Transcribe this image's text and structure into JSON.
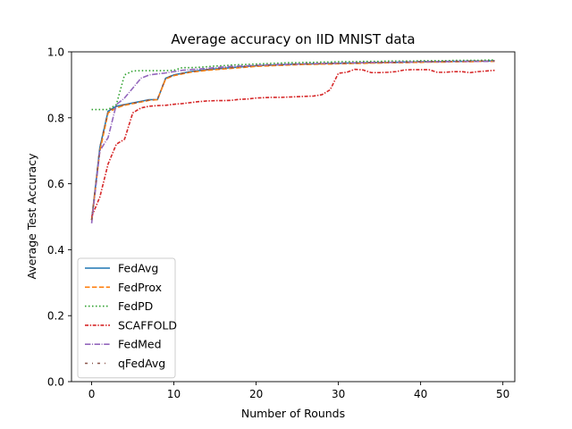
{
  "chart_data": {
    "type": "line",
    "title": "Average accuracy on IID MNIST data",
    "xlabel": "Number of Rounds",
    "ylabel": "Average Test Accuracy",
    "xlim": [
      -2.45,
      51.45
    ],
    "ylim": [
      0.0,
      1.0
    ],
    "xticks": [
      "0",
      "10",
      "20",
      "30",
      "40",
      "50"
    ],
    "yticks": [
      "0.0",
      "0.2",
      "0.4",
      "0.6",
      "0.8",
      "1.0"
    ],
    "grid": false,
    "legend_position": "lower-left",
    "x": [
      0,
      1,
      2,
      3,
      4,
      5,
      6,
      7,
      8,
      9,
      10,
      11,
      12,
      13,
      14,
      15,
      16,
      17,
      18,
      19,
      20,
      21,
      22,
      23,
      24,
      25,
      26,
      27,
      28,
      29,
      30,
      31,
      32,
      33,
      34,
      35,
      36,
      37,
      38,
      39,
      40,
      41,
      42,
      43,
      44,
      45,
      46,
      47,
      48,
      49
    ],
    "series": [
      {
        "name": "FedAvg",
        "color": "#1f77b4",
        "dash": "solid",
        "values": [
          0.49,
          0.71,
          0.82,
          0.835,
          0.84,
          0.845,
          0.85,
          0.855,
          0.855,
          0.92,
          0.93,
          0.935,
          0.94,
          0.943,
          0.946,
          0.948,
          0.95,
          0.952,
          0.954,
          0.956,
          0.958,
          0.959,
          0.96,
          0.961,
          0.962,
          0.963,
          0.963,
          0.964,
          0.964,
          0.965,
          0.965,
          0.966,
          0.966,
          0.967,
          0.967,
          0.968,
          0.968,
          0.968,
          0.969,
          0.969,
          0.97,
          0.97,
          0.97,
          0.971,
          0.971,
          0.971,
          0.972,
          0.972,
          0.972,
          0.973
        ]
      },
      {
        "name": "FedProx",
        "color": "#ff7f0e",
        "dash": "dashed",
        "values": [
          0.49,
          0.7,
          0.815,
          0.83,
          0.838,
          0.843,
          0.848,
          0.853,
          0.855,
          0.918,
          0.928,
          0.933,
          0.938,
          0.941,
          0.944,
          0.946,
          0.948,
          0.95,
          0.952,
          0.954,
          0.956,
          0.957,
          0.958,
          0.959,
          0.96,
          0.961,
          0.962,
          0.962,
          0.963,
          0.963,
          0.964,
          0.964,
          0.965,
          0.965,
          0.966,
          0.966,
          0.967,
          0.967,
          0.967,
          0.968,
          0.968,
          0.969,
          0.969,
          0.969,
          0.97,
          0.97,
          0.97,
          0.971,
          0.971,
          0.971
        ]
      },
      {
        "name": "FedPD",
        "color": "#2ca02c",
        "dash": "dotted",
        "values": [
          0.825,
          0.825,
          0.825,
          0.84,
          0.93,
          0.942,
          0.943,
          0.943,
          0.943,
          0.943,
          0.944,
          0.952,
          0.952,
          0.953,
          0.955,
          0.957,
          0.958,
          0.96,
          0.961,
          0.962,
          0.963,
          0.964,
          0.965,
          0.966,
          0.967,
          0.967,
          0.968,
          0.968,
          0.969,
          0.969,
          0.97,
          0.97,
          0.97,
          0.971,
          0.971,
          0.971,
          0.972,
          0.972,
          0.972,
          0.972,
          0.973,
          0.973,
          0.973,
          0.973,
          0.974,
          0.974,
          0.974,
          0.974,
          0.975,
          0.975
        ]
      },
      {
        "name": "SCAFFOLD",
        "color": "#d62728",
        "dash": "dashdot-dense",
        "values": [
          0.5,
          0.56,
          0.66,
          0.72,
          0.735,
          0.815,
          0.83,
          0.835,
          0.837,
          0.838,
          0.841,
          0.843,
          0.846,
          0.849,
          0.851,
          0.852,
          0.852,
          0.853,
          0.856,
          0.857,
          0.86,
          0.861,
          0.862,
          0.862,
          0.863,
          0.864,
          0.865,
          0.866,
          0.87,
          0.885,
          0.935,
          0.938,
          0.947,
          0.945,
          0.937,
          0.937,
          0.938,
          0.94,
          0.945,
          0.946,
          0.946,
          0.946,
          0.938,
          0.938,
          0.94,
          0.94,
          0.937,
          0.94,
          0.942,
          0.944
        ]
      },
      {
        "name": "FedMed",
        "color": "#9467bd",
        "dash": "dashdot",
        "values": [
          0.48,
          0.7,
          0.74,
          0.84,
          0.86,
          0.89,
          0.92,
          0.93,
          0.933,
          0.936,
          0.94,
          0.944,
          0.946,
          0.948,
          0.95,
          0.952,
          0.954,
          0.956,
          0.957,
          0.958,
          0.959,
          0.96,
          0.961,
          0.962,
          0.962,
          0.963,
          0.964,
          0.964,
          0.965,
          0.965,
          0.966,
          0.966,
          0.967,
          0.967,
          0.968,
          0.968,
          0.968,
          0.969,
          0.969,
          0.969,
          0.97,
          0.97,
          0.97,
          0.97,
          0.971,
          0.971,
          0.971,
          0.971,
          0.971,
          0.972
        ]
      },
      {
        "name": "qFedAvg",
        "color": "#8c564b",
        "dash": "dashdot-sparse",
        "values": [
          0.49,
          0.71,
          0.82,
          0.834,
          0.84,
          0.844,
          0.849,
          0.854,
          0.856,
          0.92,
          0.93,
          0.935,
          0.94,
          0.943,
          0.946,
          0.948,
          0.95,
          0.952,
          0.954,
          0.956,
          0.958,
          0.959,
          0.96,
          0.961,
          0.962,
          0.963,
          0.963,
          0.964,
          0.964,
          0.965,
          0.965,
          0.966,
          0.966,
          0.967,
          0.967,
          0.968,
          0.968,
          0.968,
          0.969,
          0.969,
          0.97,
          0.97,
          0.97,
          0.971,
          0.971,
          0.971,
          0.972,
          0.972,
          0.972,
          0.973
        ]
      }
    ]
  }
}
